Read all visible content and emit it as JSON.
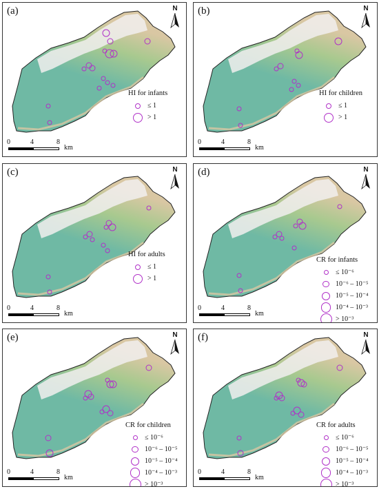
{
  "north_label": "N",
  "scale": {
    "ticks": [
      "0",
      "4",
      "8"
    ],
    "unit": "km"
  },
  "colors": {
    "marker": "#b030c8",
    "terrain_low": "#6fb9a4",
    "terrain_mid": "#a8c98f",
    "terrain_high": "#d9c7a3",
    "snow": "#f1eeee"
  },
  "panels": [
    {
      "label": "(a)",
      "legend_title": "HI for infants",
      "legend_items": [
        "≤ 1",
        "> 1"
      ]
    },
    {
      "label": "(b)",
      "legend_title": "HI for children",
      "legend_items": [
        "≤ 1",
        "> 1"
      ]
    },
    {
      "label": "(c)",
      "legend_title": "HI for adults",
      "legend_items": [
        "≤ 1",
        "> 1"
      ]
    },
    {
      "label": "(d)",
      "legend_title": "CR for infants",
      "legend_items": [
        "≤ 10⁻⁶",
        "10⁻⁶ – 10⁻⁵",
        "10⁻⁵ – 10⁻⁴",
        "10⁻⁴ – 10⁻³",
        "> 10⁻³"
      ]
    },
    {
      "label": "(e)",
      "legend_title": "CR for children",
      "legend_items": [
        "≤ 10⁻⁶",
        "10⁻⁶ – 10⁻⁵",
        "10⁻⁵ – 10⁻⁴",
        "10⁻⁴ – 10⁻³",
        "> 10⁻³"
      ]
    },
    {
      "label": "(f)",
      "legend_title": "CR for adults",
      "legend_items": [
        "≤ 10⁻⁶",
        "10⁻⁶ – 10⁻⁵",
        "10⁻⁵ – 10⁻⁴",
        "10⁻⁴ – 10⁻³",
        "> 10⁻³"
      ]
    }
  ]
}
